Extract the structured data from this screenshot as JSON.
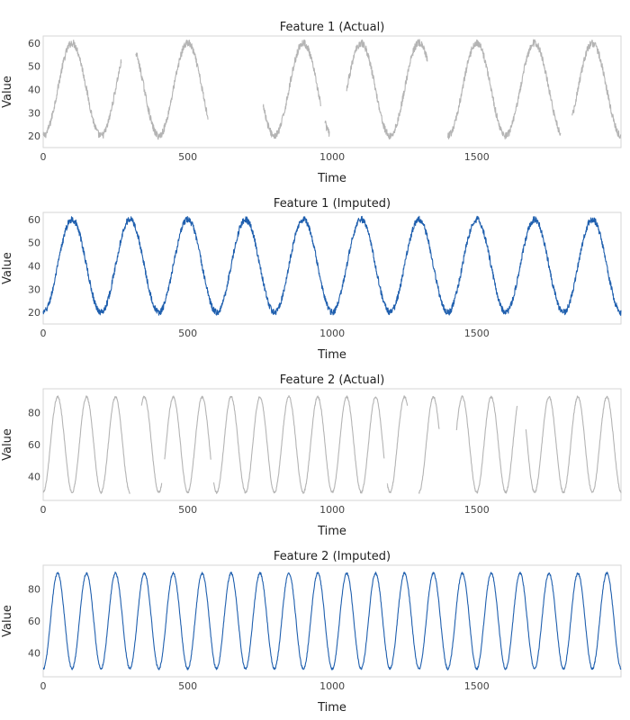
{
  "chart_data": [
    {
      "type": "line",
      "title": "Feature 1 (Actual)",
      "xlabel": "Time",
      "ylabel": "Value",
      "xlim": [
        0,
        1999
      ],
      "ylim": [
        15,
        63
      ],
      "xticks": [
        0,
        500,
        1000,
        1500
      ],
      "yticks": [
        20,
        30,
        40,
        50,
        60
      ],
      "grid": false,
      "color": "#b4b4b4",
      "series_model": {
        "kind": "sine",
        "offset": 40,
        "amplitude": 20,
        "period": 200,
        "phase": -50,
        "noise": 1.6
      },
      "segments": [
        [
          0,
          270
        ],
        [
          320,
          570
        ],
        [
          760,
          960
        ],
        [
          975,
          990
        ],
        [
          1050,
          1330
        ],
        [
          1400,
          1790
        ],
        [
          1830,
          1999
        ]
      ]
    },
    {
      "type": "line",
      "title": "Feature 1 (Imputed)",
      "xlabel": "Time",
      "ylabel": "Value",
      "xlim": [
        0,
        1999
      ],
      "ylim": [
        15,
        63
      ],
      "xticks": [
        0,
        500,
        1000,
        1500
      ],
      "yticks": [
        20,
        30,
        40,
        50,
        60
      ],
      "grid": false,
      "color": "#1f5fae",
      "series_model": {
        "kind": "sine",
        "offset": 40,
        "amplitude": 20,
        "period": 200,
        "phase": -50,
        "noise": 1.4
      },
      "segments": [
        [
          0,
          1999
        ]
      ]
    },
    {
      "type": "line",
      "title": "Feature 2 (Actual)",
      "xlabel": "Time",
      "ylabel": "Value",
      "xlim": [
        0,
        1999
      ],
      "ylim": [
        25,
        95
      ],
      "xticks": [
        0,
        500,
        1000,
        1500
      ],
      "yticks": [
        40,
        60,
        80
      ],
      "grid": false,
      "color": "#b4b4b4",
      "series_model": {
        "kind": "sine",
        "offset": 60,
        "amplitude": 30,
        "period": 100,
        "phase": -25,
        "noise": 0.7
      },
      "segments": [
        [
          0,
          300
        ],
        [
          340,
          410
        ],
        [
          420,
          580
        ],
        [
          590,
          1180
        ],
        [
          1190,
          1260
        ],
        [
          1300,
          1370
        ],
        [
          1430,
          1640
        ],
        [
          1670,
          1999
        ]
      ]
    },
    {
      "type": "line",
      "title": "Feature 2 (Imputed)",
      "xlabel": "Time",
      "ylabel": "Value",
      "xlim": [
        0,
        1999
      ],
      "ylim": [
        25,
        95
      ],
      "xticks": [
        0,
        500,
        1000,
        1500
      ],
      "yticks": [
        40,
        60,
        80
      ],
      "grid": false,
      "color": "#1f5fae",
      "series_model": {
        "kind": "sine",
        "offset": 60,
        "amplitude": 30,
        "period": 100,
        "phase": -25,
        "noise": 0.7
      },
      "segments": [
        [
          0,
          1999
        ]
      ]
    }
  ]
}
